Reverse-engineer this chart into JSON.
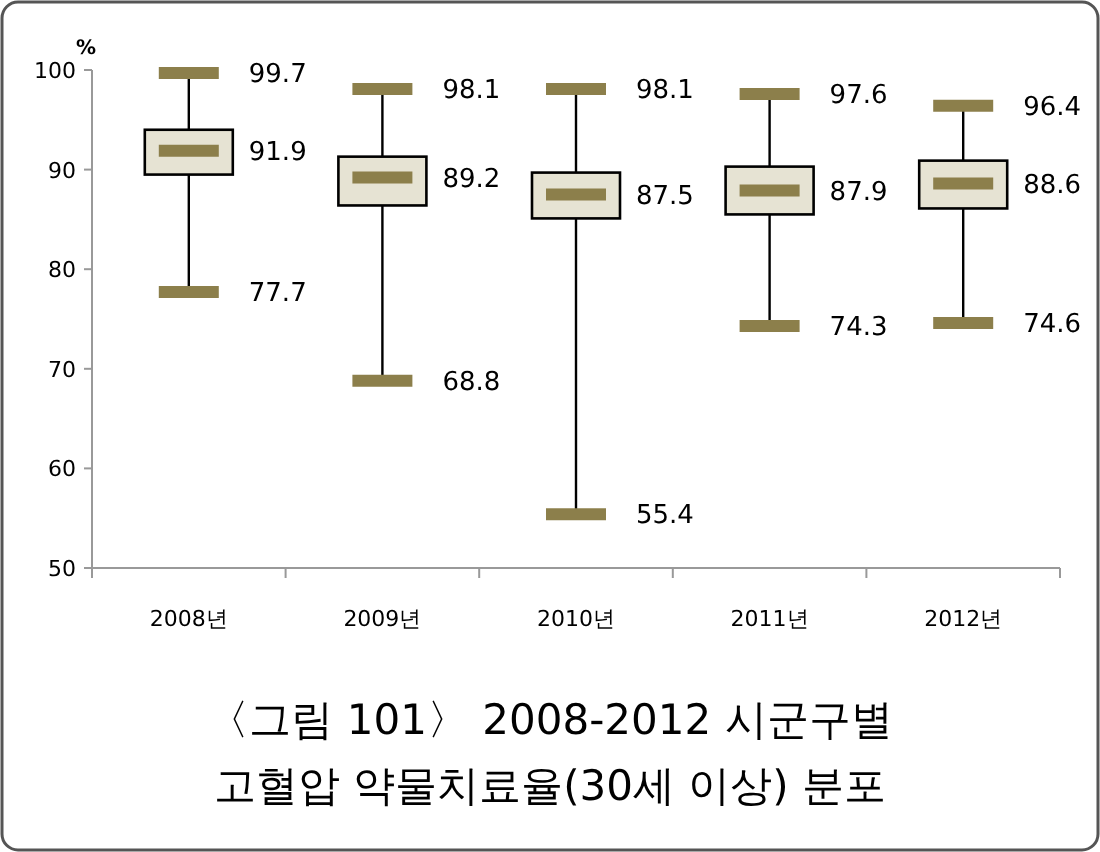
{
  "chart_data": {
    "type": "box",
    "title": "〈그림 101〉 2008-2012 시군구별",
    "subtitle": "고혈압 약물치료율(30세 이상) 분포",
    "ylabel": "%",
    "categories": [
      "2008년",
      "2009년",
      "2010년",
      "2011년",
      "2012년"
    ],
    "boxes": [
      {
        "low": 77.7,
        "q1": 89.5,
        "median": 91.9,
        "q3": 94.0,
        "high": 99.7
      },
      {
        "low": 68.8,
        "q1": 86.4,
        "median": 89.2,
        "q3": 91.3,
        "high": 98.1
      },
      {
        "low": 55.4,
        "q1": 85.1,
        "median": 87.5,
        "q3": 89.7,
        "high": 98.1
      },
      {
        "low": 74.3,
        "q1": 85.5,
        "median": 87.9,
        "q3": 90.3,
        "high": 97.6
      },
      {
        "low": 74.6,
        "q1": 86.1,
        "median": 88.6,
        "q3": 90.9,
        "high": 96.4
      }
    ],
    "color": "#e6e3d3",
    "ylim": [
      50,
      100
    ],
    "yticks": [
      50,
      60,
      70,
      80,
      90,
      100
    ],
    "annotations": [
      {
        "text": "99.7",
        "x": "2008년",
        "y": 99.7
      },
      {
        "text": "91.9",
        "x": "2008년",
        "y": 91.9
      },
      {
        "text": "77.7",
        "x": "2008년",
        "y": 77.7
      },
      {
        "text": "98.1",
        "x": "2009년",
        "y": 98.1
      },
      {
        "text": "89.2",
        "x": "2009년",
        "y": 89.2
      },
      {
        "text": "68.8",
        "x": "2009년",
        "y": 68.8
      },
      {
        "text": "98.1",
        "x": "2010년",
        "y": 98.1
      },
      {
        "text": "87.5",
        "x": "2010년",
        "y": 87.5
      },
      {
        "text": "55.4",
        "x": "2010년",
        "y": 55.4
      },
      {
        "text": "97.6",
        "x": "2011년",
        "y": 97.6
      },
      {
        "text": "87.9",
        "x": "2011년",
        "y": 87.9
      },
      {
        "text": "74.3",
        "x": "2011년",
        "y": 74.3
      },
      {
        "text": "96.4",
        "x": "2012년",
        "y": 96.4
      },
      {
        "text": "88.6",
        "x": "2012년",
        "y": 88.6
      },
      {
        "text": "74.6",
        "x": "2012년",
        "y": 74.6
      }
    ]
  }
}
